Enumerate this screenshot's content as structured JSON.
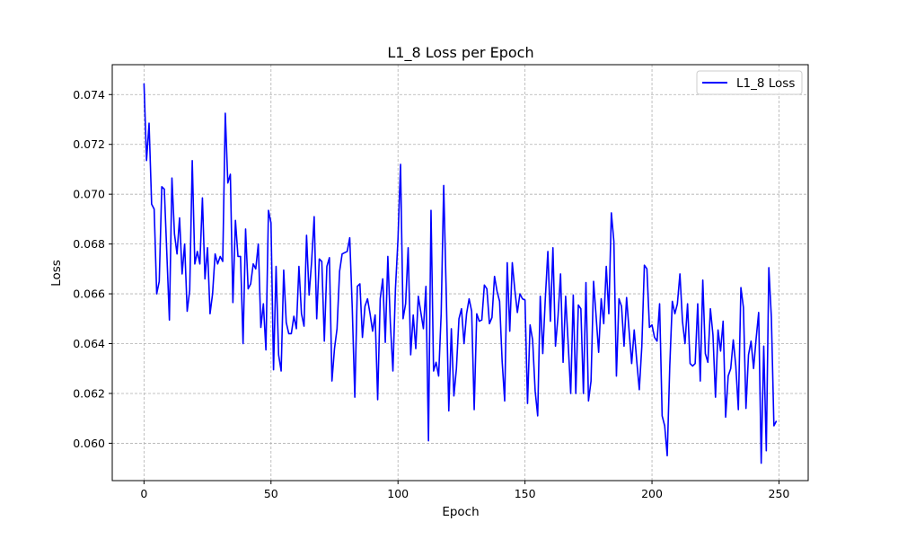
{
  "chart_data": {
    "type": "line",
    "title": "L1_8 Loss per Epoch",
    "xlabel": "Epoch",
    "ylabel": "Loss",
    "xlim": [
      -12.5,
      261.5
    ],
    "ylim": [
      0.0585,
      0.0752
    ],
    "xticks": [
      0,
      50,
      100,
      150,
      200,
      250
    ],
    "xtick_labels": [
      "0",
      "50",
      "100",
      "150",
      "200",
      "250"
    ],
    "yticks": [
      0.06,
      0.062,
      0.064,
      0.066,
      0.068,
      0.07,
      0.072,
      0.074
    ],
    "ytick_labels": [
      "0.060",
      "0.062",
      "0.064",
      "0.066",
      "0.068",
      "0.070",
      "0.072",
      "0.074"
    ],
    "grid": true,
    "legend_position": "top-right",
    "series": [
      {
        "name": "L1_8 Loss",
        "color": "#0000ff",
        "x_start": 0,
        "x_step": 1,
        "values": [
          0.07445,
          0.07135,
          0.07285,
          0.0696,
          0.0694,
          0.066,
          0.0665,
          0.0703,
          0.0702,
          0.0676,
          0.06495,
          0.07065,
          0.0684,
          0.0676,
          0.06905,
          0.0668,
          0.068,
          0.0653,
          0.06615,
          0.07135,
          0.0672,
          0.0677,
          0.0672,
          0.06985,
          0.0666,
          0.06785,
          0.0652,
          0.066,
          0.0676,
          0.0672,
          0.0675,
          0.0673,
          0.07325,
          0.07045,
          0.0708,
          0.06565,
          0.06895,
          0.0675,
          0.0675,
          0.064,
          0.0686,
          0.0662,
          0.0664,
          0.0672,
          0.067,
          0.068,
          0.06465,
          0.0656,
          0.06375,
          0.06935,
          0.06885,
          0.06295,
          0.0671,
          0.06355,
          0.0629,
          0.06695,
          0.06485,
          0.0644,
          0.0644,
          0.0651,
          0.0646,
          0.0671,
          0.0652,
          0.0647,
          0.06835,
          0.06595,
          0.0673,
          0.0691,
          0.065,
          0.0674,
          0.0673,
          0.0641,
          0.0671,
          0.06745,
          0.0625,
          0.0638,
          0.0646,
          0.0669,
          0.0676,
          0.06765,
          0.0677,
          0.06825,
          0.0654,
          0.06185,
          0.0663,
          0.0664,
          0.06425,
          0.0655,
          0.0658,
          0.0652,
          0.0645,
          0.06515,
          0.06175,
          0.0658,
          0.0666,
          0.06405,
          0.0675,
          0.0648,
          0.0629,
          0.0662,
          0.0682,
          0.0712,
          0.065,
          0.0656,
          0.06785,
          0.06355,
          0.06515,
          0.0638,
          0.0659,
          0.06525,
          0.0646,
          0.0663,
          0.0601,
          0.06935,
          0.0629,
          0.06325,
          0.0627,
          0.0652,
          0.07035,
          0.066,
          0.0613,
          0.0646,
          0.0619,
          0.063,
          0.065,
          0.0654,
          0.064,
          0.0652,
          0.0658,
          0.0653,
          0.06135,
          0.0652,
          0.0649,
          0.06495,
          0.06635,
          0.0662,
          0.0648,
          0.06505,
          0.0667,
          0.0661,
          0.0657,
          0.0633,
          0.0617,
          0.06725,
          0.0645,
          0.06725,
          0.06615,
          0.06525,
          0.066,
          0.0658,
          0.06575,
          0.0616,
          0.06475,
          0.06415,
          0.0621,
          0.0611,
          0.0659,
          0.0636,
          0.0658,
          0.0677,
          0.0649,
          0.06785,
          0.0639,
          0.0651,
          0.0668,
          0.06325,
          0.0659,
          0.064,
          0.062,
          0.06595,
          0.062,
          0.06555,
          0.0654,
          0.062,
          0.06645,
          0.0617,
          0.0625,
          0.0665,
          0.0651,
          0.06365,
          0.0658,
          0.0648,
          0.0671,
          0.0652,
          0.06925,
          0.0681,
          0.0627,
          0.0658,
          0.0655,
          0.0639,
          0.06585,
          0.0645,
          0.0632,
          0.06455,
          0.0633,
          0.06215,
          0.0639,
          0.06715,
          0.067,
          0.06465,
          0.06475,
          0.06425,
          0.0641,
          0.0656,
          0.0611,
          0.0607,
          0.0595,
          0.0631,
          0.0657,
          0.0652,
          0.0656,
          0.0668,
          0.0649,
          0.064,
          0.0656,
          0.0632,
          0.0631,
          0.0632,
          0.0656,
          0.0625,
          0.06655,
          0.0636,
          0.06325,
          0.0654,
          0.06435,
          0.06185,
          0.06455,
          0.0637,
          0.0649,
          0.06105,
          0.0627,
          0.063,
          0.06415,
          0.0631,
          0.06135,
          0.06625,
          0.06545,
          0.0614,
          0.06355,
          0.0641,
          0.063,
          0.0642,
          0.06525,
          0.0592,
          0.0639,
          0.0597,
          0.06705,
          0.06505,
          0.0607,
          0.0609
        ]
      }
    ]
  }
}
